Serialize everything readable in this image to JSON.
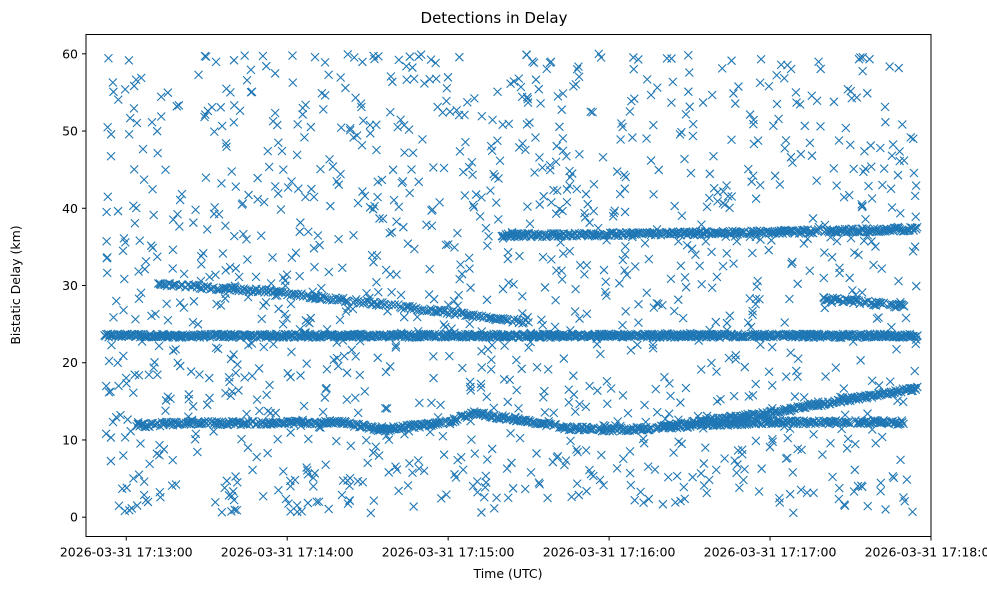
{
  "chart_data": {
    "type": "scatter",
    "title": "Detections in Delay",
    "xlabel": "Time (UTC)",
    "ylabel": "Bistatic Delay (km)",
    "x_unit": "seconds since 2026-03-31 17:12:00 UTC",
    "xlim": [
      45,
      360
    ],
    "ylim": [
      -2.5,
      62.5
    ],
    "x_ticks": [
      {
        "value": 60,
        "label": "2026-03-31 17:13:00"
      },
      {
        "value": 120,
        "label": "2026-03-31 17:14:00"
      },
      {
        "value": 180,
        "label": "2026-03-31 17:15:00"
      },
      {
        "value": 240,
        "label": "2026-03-31 17:16:00"
      },
      {
        "value": 300,
        "label": "2026-03-31 17:17:00"
      },
      {
        "value": 360,
        "label": "2026-03-31 17:18:00"
      }
    ],
    "y_ticks": [
      {
        "value": 0,
        "label": "0"
      },
      {
        "value": 10,
        "label": "10"
      },
      {
        "value": 20,
        "label": "20"
      },
      {
        "value": 30,
        "label": "30"
      },
      {
        "value": 40,
        "label": "40"
      },
      {
        "value": 50,
        "label": "50"
      },
      {
        "value": 60,
        "label": "60"
      }
    ],
    "marker": "x",
    "color": "#1f77b4",
    "series": [
      {
        "name": "constant delay track",
        "style": "dense track",
        "x_start": 52,
        "x_end": 355,
        "step": 0.3,
        "segments": [
          {
            "x": 52,
            "y": 23.5
          },
          {
            "x": 355,
            "y": 23.5
          }
        ]
      },
      {
        "name": "upper track (~37 km)",
        "style": "dense track",
        "x_start": 200,
        "x_end": 355,
        "step": 0.4,
        "segments": [
          {
            "x": 200,
            "y": 36.5
          },
          {
            "x": 260,
            "y": 36.7
          },
          {
            "x": 300,
            "y": 36.9
          },
          {
            "x": 355,
            "y": 37.3
          }
        ]
      },
      {
        "name": "descending track (~30 to ~25 km)",
        "style": "dense track",
        "x_start": 72,
        "x_end": 210,
        "step": 0.6,
        "segments": [
          {
            "x": 72,
            "y": 30.2
          },
          {
            "x": 110,
            "y": 29.3
          },
          {
            "x": 150,
            "y": 27.8
          },
          {
            "x": 185,
            "y": 26.3
          },
          {
            "x": 210,
            "y": 25.2
          }
        ]
      },
      {
        "name": "late track (~28 km)",
        "style": "dense track",
        "x_start": 320,
        "x_end": 350,
        "step": 0.5,
        "segments": [
          {
            "x": 320,
            "y": 28.3
          },
          {
            "x": 350,
            "y": 27.3
          }
        ]
      },
      {
        "name": "lower track (~12 km)",
        "style": "dense track",
        "x_start": 63,
        "x_end": 350,
        "step": 0.4,
        "segments": [
          {
            "x": 63,
            "y": 11.8
          },
          {
            "x": 80,
            "y": 12.2
          },
          {
            "x": 100,
            "y": 12.2
          },
          {
            "x": 140,
            "y": 12.3
          },
          {
            "x": 155,
            "y": 11.3
          },
          {
            "x": 180,
            "y": 12.3
          },
          {
            "x": 190,
            "y": 13.5
          },
          {
            "x": 225,
            "y": 11.5
          },
          {
            "x": 245,
            "y": 11.3
          },
          {
            "x": 275,
            "y": 12.0
          },
          {
            "x": 300,
            "y": 12.3
          },
          {
            "x": 350,
            "y": 12.3
          }
        ]
      },
      {
        "name": "rising track (~12 to ~17 km)",
        "style": "dense track",
        "x_start": 260,
        "x_end": 355,
        "step": 0.4,
        "segments": [
          {
            "x": 260,
            "y": 11.8
          },
          {
            "x": 300,
            "y": 13.5
          },
          {
            "x": 330,
            "y": 15.3
          },
          {
            "x": 355,
            "y": 16.7
          }
        ]
      },
      {
        "name": "background clutter",
        "style": "uniform scatter",
        "x_range": [
          52,
          355
        ],
        "y_range": [
          0.5,
          60
        ],
        "count": 1300
      }
    ]
  }
}
